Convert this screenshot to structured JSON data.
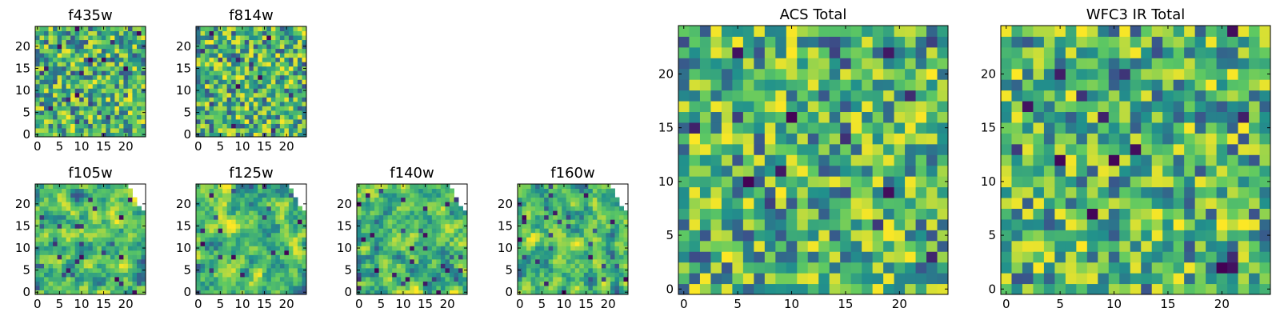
{
  "colormap": [
    "#440154",
    "#3b528b",
    "#21918c",
    "#5ec962",
    "#fde725"
  ],
  "background": "#ffffff",
  "chart_data": [
    {
      "type": "heatmap",
      "title": "f435w",
      "size": 25,
      "xlim": [
        0,
        24
      ],
      "ylim": [
        0,
        24
      ],
      "xticks": [
        0,
        5,
        10,
        15,
        20
      ],
      "yticks": [
        0,
        5,
        10,
        15,
        20
      ],
      "seed": 11,
      "style": "noise",
      "masked_corner": false
    },
    {
      "type": "heatmap",
      "title": "f814w",
      "size": 25,
      "xlim": [
        0,
        24
      ],
      "ylim": [
        0,
        24
      ],
      "xticks": [
        0,
        5,
        10,
        15,
        20
      ],
      "yticks": [
        0,
        5,
        10,
        15,
        20
      ],
      "seed": 23,
      "style": "noise",
      "masked_corner": false
    },
    {
      "type": "heatmap",
      "title": "f105w",
      "size": 25,
      "xlim": [
        0,
        24
      ],
      "ylim": [
        0,
        24
      ],
      "xticks": [
        0,
        5,
        10,
        15,
        20
      ],
      "yticks": [
        0,
        5,
        10,
        15,
        20
      ],
      "seed": 37,
      "style": "smooth",
      "masked_corner": true
    },
    {
      "type": "heatmap",
      "title": "f125w",
      "size": 25,
      "xlim": [
        0,
        24
      ],
      "ylim": [
        0,
        24
      ],
      "xticks": [
        0,
        5,
        10,
        15,
        20
      ],
      "yticks": [
        0,
        5,
        10,
        15,
        20
      ],
      "seed": 41,
      "style": "smooth",
      "masked_corner": true
    },
    {
      "type": "heatmap",
      "title": "f140w",
      "size": 25,
      "xlim": [
        0,
        24
      ],
      "ylim": [
        0,
        24
      ],
      "xticks": [
        0,
        5,
        10,
        15,
        20
      ],
      "yticks": [
        0,
        5,
        10,
        15,
        20
      ],
      "seed": 53,
      "style": "smooth",
      "masked_corner": true
    },
    {
      "type": "heatmap",
      "title": "f160w",
      "size": 25,
      "xlim": [
        0,
        24
      ],
      "ylim": [
        0,
        24
      ],
      "xticks": [
        0,
        5,
        10,
        15,
        20
      ],
      "yticks": [
        0,
        5,
        10,
        15,
        20
      ],
      "seed": 67,
      "style": "smooth",
      "masked_corner": true
    },
    {
      "type": "heatmap",
      "title": "ACS Total",
      "size": 25,
      "xlim": [
        0,
        24
      ],
      "ylim": [
        0,
        24
      ],
      "xticks": [
        0,
        5,
        10,
        15,
        20
      ],
      "yticks": [
        0,
        5,
        10,
        15,
        20
      ],
      "seed": 79,
      "style": "noise",
      "masked_corner": false
    },
    {
      "type": "heatmap",
      "title": "WFC3 IR Total",
      "size": 25,
      "xlim": [
        0,
        24
      ],
      "ylim": [
        0,
        24
      ],
      "xticks": [
        0,
        5,
        10,
        15,
        20
      ],
      "yticks": [
        0,
        5,
        10,
        15,
        20
      ],
      "seed": 97,
      "style": "noise",
      "masked_corner": false
    }
  ]
}
